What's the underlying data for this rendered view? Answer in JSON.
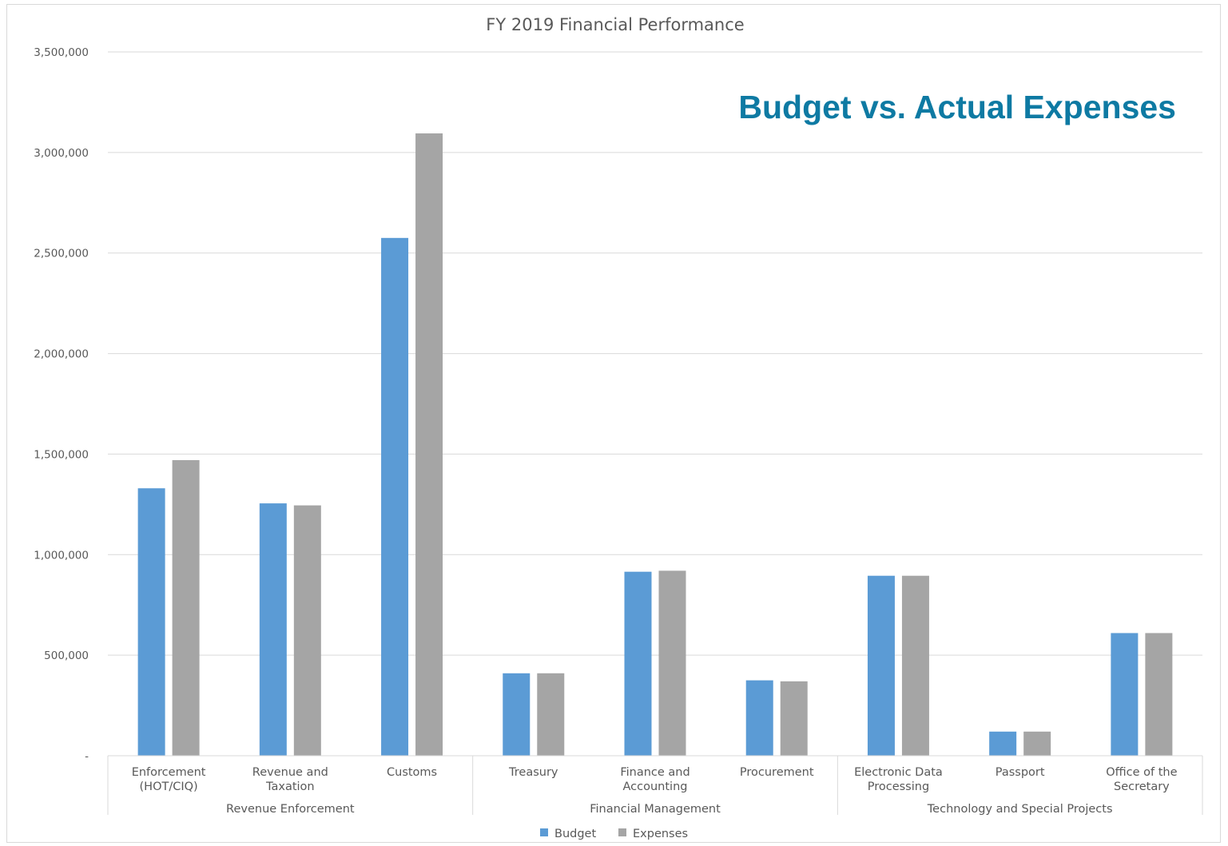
{
  "chart_data": {
    "type": "bar",
    "title": "FY 2019 Financial Performance",
    "annotation": "Budget vs. Actual Expenses",
    "annotation_color": "#0e7aa3",
    "ylim": [
      0,
      3500000
    ],
    "y_ticks": [
      {
        "value": 0,
        "label": "-"
      },
      {
        "value": 500000,
        "label": "500,000"
      },
      {
        "value": 1000000,
        "label": "1,000,000"
      },
      {
        "value": 1500000,
        "label": "1,500,000"
      },
      {
        "value": 2000000,
        "label": "2,000,000"
      },
      {
        "value": 2500000,
        "label": "2,500,000"
      },
      {
        "value": 3000000,
        "label": "3,000,000"
      },
      {
        "value": 3500000,
        "label": "3,500,000"
      }
    ],
    "grid": true,
    "legend_position": "bottom",
    "categories": [
      [
        "Enforcement",
        "(HOT/CIQ)"
      ],
      [
        "Revenue and",
        "Taxation"
      ],
      [
        "Customs"
      ],
      [
        "Treasury"
      ],
      [
        "Finance and",
        "Accounting"
      ],
      [
        "Procurement"
      ],
      [
        "Electronic Data",
        "Processing"
      ],
      [
        "Passport"
      ],
      [
        "Office of the",
        "Secretary"
      ]
    ],
    "groups": [
      {
        "label": "Revenue Enforcement",
        "start": 0,
        "end": 2
      },
      {
        "label": "Financial Management",
        "start": 3,
        "end": 5
      },
      {
        "label": "Technology and Special Projects",
        "start": 6,
        "end": 8
      }
    ],
    "series": [
      {
        "name": "Budget",
        "color": "#5b9bd5",
        "values": [
          1330000,
          1255000,
          2575000,
          410000,
          915000,
          375000,
          895000,
          120000,
          610000
        ]
      },
      {
        "name": "Expenses",
        "color": "#a5a5a5",
        "values": [
          1470000,
          1245000,
          3095000,
          410000,
          920000,
          370000,
          895000,
          120000,
          610000
        ]
      }
    ]
  }
}
